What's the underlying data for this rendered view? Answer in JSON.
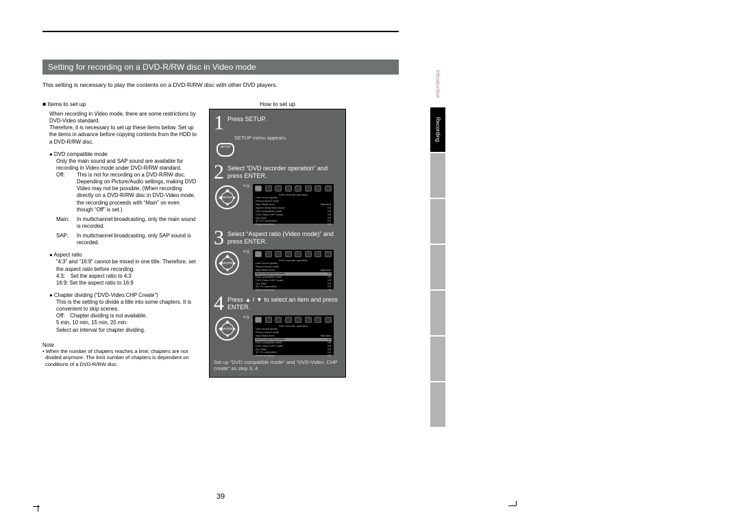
{
  "page_number": "39",
  "title": "Setting for recording on a DVD-R/RW disc in Video mode",
  "intro": "This setting is necessary to play the contents on a DVD-R/RW disc with other DVD players.",
  "left": {
    "items_head": "Items to set up",
    "items_intro": "When recording in Video mode, there are some restrictions by DVD-Video standard.\nTherefore, it is necessary to set up these items below. Set up the items in advance before copying contents from the HDD to a DVD-R/RW disc.",
    "b1_head": "DVD compatible mode",
    "b1_body": "Only the main sound and SAP sound are available for recording in Video mode under DVD-R/RW standard.",
    "off_label": "Off:",
    "off_body": "This is not for recording on a DVD-R/RW disc. Depending on Picture/Audio settings, making DVD Video may not be possible. (When recording directly on a DVD-R/RW disc in DVD-Video mode, the recording proceeds with “Main” on even though “Off” is set.)",
    "main_label": "Main:",
    "main_body": "In multichannel broadcasting, only the main sound is recorded.",
    "sap_label": "SAP:",
    "sap_body": "In multichannel broadcasting, only SAP sound is recorded.",
    "b2_head": "Aspect ratio",
    "b2_body": "“4:3” and “16:9” cannot be mixed in one title. Therefore, set the aspect ratio before recording.\n4:3: Set the aspect ratio to 4:3\n16:9: Set the aspect ratio to 16:9",
    "b3_head": "Chapter dividing (“DVD-Video:CHP Create”)",
    "b3_body": "This is the setting to divide a title into some chapters. It is convenient to skip scenes.\nOff: Chapter dividing is not available.\n5 min, 10 min, 15 min, 20 min:\nSelect an interval for chapter dividing.",
    "note_head": "Note",
    "note_body": "• When the number of chapters reaches a limit, chapters are not divided anymore. The limit number of chapters is dependent on conditions of a DVD-R/RW disc."
  },
  "right": {
    "how_head": "How to set up",
    "s1": "Press SETUP.",
    "s1_sub": "SETUP menu appears.",
    "setup_btn": "SETUP",
    "s2": "Select “DVD recorder operation” and press ENTER.",
    "s3": "Select “Aspect ratio (Video mode)” and press ENTER.",
    "s4": "Press ▲ / ▼ to select an item and press ENTER.",
    "final": "Set up “DVD compatible mode” and “DVD-Video: CHP create” as step 3, 4.",
    "eg": "e.g.",
    "screen": {
      "title": "DVD recorder operation",
      "lines": [
        [
          "User record quality",
          ""
        ],
        [
          "Picture record mode",
          ""
        ],
        [
          "Input Black level",
          "Standard"
        ],
        [
          "Aspect ratio(Video mode)",
          "4:3"
        ],
        [
          "DVD compatible mode",
          "Off"
        ],
        [
          "DVD-Video:CHP Create",
          "Off"
        ],
        [
          "Rec DNR",
          "Off"
        ],
        [
          "3D Y/C separation",
          "On"
        ],
        [
          "Relay recording",
          "Off"
        ]
      ]
    }
  },
  "tabs": [
    "Introduction",
    "Recording",
    "",
    "",
    "",
    "",
    "",
    ""
  ],
  "colors": {
    "title_bg": "#6d7273",
    "box_bg": "#616463",
    "tab_active": "#000000",
    "tab_inactive": "#b3b3b3"
  }
}
